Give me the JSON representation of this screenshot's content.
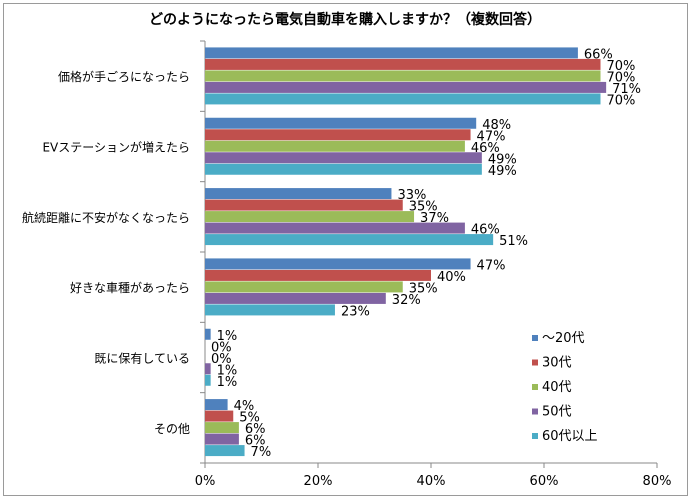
{
  "chart_data": {
    "type": "bar",
    "orientation": "horizontal",
    "title": "どのようになったら電気自動車を購入しますか？（複数回答）",
    "categories": [
      "価格が手ごろになったら",
      "EVステーションが増えたら",
      "航続距離に不安がなくなったら",
      "好きな車種があったら",
      "既に保有している",
      "その他"
    ],
    "series": [
      {
        "name": "～20代",
        "color": "#4f81bd",
        "values": [
          66,
          48,
          33,
          47,
          1,
          4
        ]
      },
      {
        "name": "30代",
        "color": "#c0504d",
        "values": [
          70,
          47,
          35,
          40,
          0,
          5
        ]
      },
      {
        "name": "40代",
        "color": "#9bbb59",
        "values": [
          70,
          46,
          37,
          35,
          0,
          6
        ]
      },
      {
        "name": "50代",
        "color": "#8064a2",
        "values": [
          71,
          49,
          46,
          32,
          1,
          6
        ]
      },
      {
        "name": "60代以上",
        "color": "#4bacc6",
        "values": [
          70,
          49,
          51,
          23,
          1,
          7
        ]
      }
    ],
    "xlim": [
      0,
      80
    ],
    "xticks": [
      "0%",
      "20%",
      "40%",
      "60%",
      "80%"
    ],
    "value_suffix": "%",
    "grid": false,
    "legend": "right"
  }
}
